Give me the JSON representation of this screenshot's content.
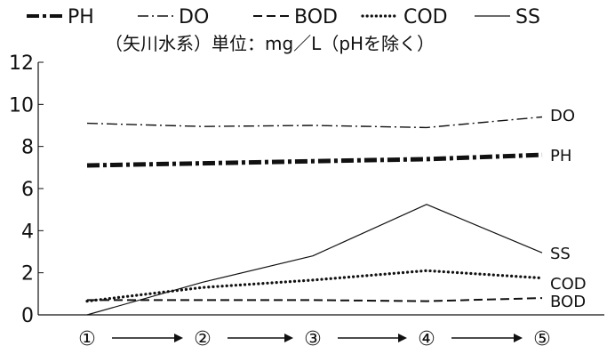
{
  "chart_data": {
    "type": "line",
    "subtitle": "（矢川水系）単位：mg／L（pHを除く）",
    "categories": [
      "①",
      "②",
      "③",
      "④",
      "⑤"
    ],
    "category_arrow": "→",
    "ylim": [
      0,
      12
    ],
    "yticks": [
      "0",
      "2",
      "4",
      "6",
      "8",
      "10",
      "12"
    ],
    "grid": false,
    "legend_position": "top",
    "series": [
      {
        "name": "PH",
        "line_style": "dash-dot-bold",
        "end_label": "PH",
        "values": [
          7.1,
          7.2,
          7.3,
          7.4,
          7.6
        ]
      },
      {
        "name": "DO",
        "line_style": "dash-dot-thin",
        "end_label": "DO",
        "values": [
          9.1,
          8.95,
          9.0,
          8.9,
          9.4
        ]
      },
      {
        "name": "BOD",
        "line_style": "dashed",
        "end_label": "BOD",
        "values": [
          0.7,
          0.7,
          0.7,
          0.65,
          0.8
        ]
      },
      {
        "name": "COD",
        "line_style": "dotted",
        "end_label": "COD",
        "values": [
          0.65,
          1.3,
          1.65,
          2.1,
          1.75
        ]
      },
      {
        "name": "SS",
        "line_style": "solid",
        "end_label": "SS",
        "values": [
          0.0,
          1.55,
          2.8,
          5.25,
          2.95
        ]
      }
    ]
  }
}
